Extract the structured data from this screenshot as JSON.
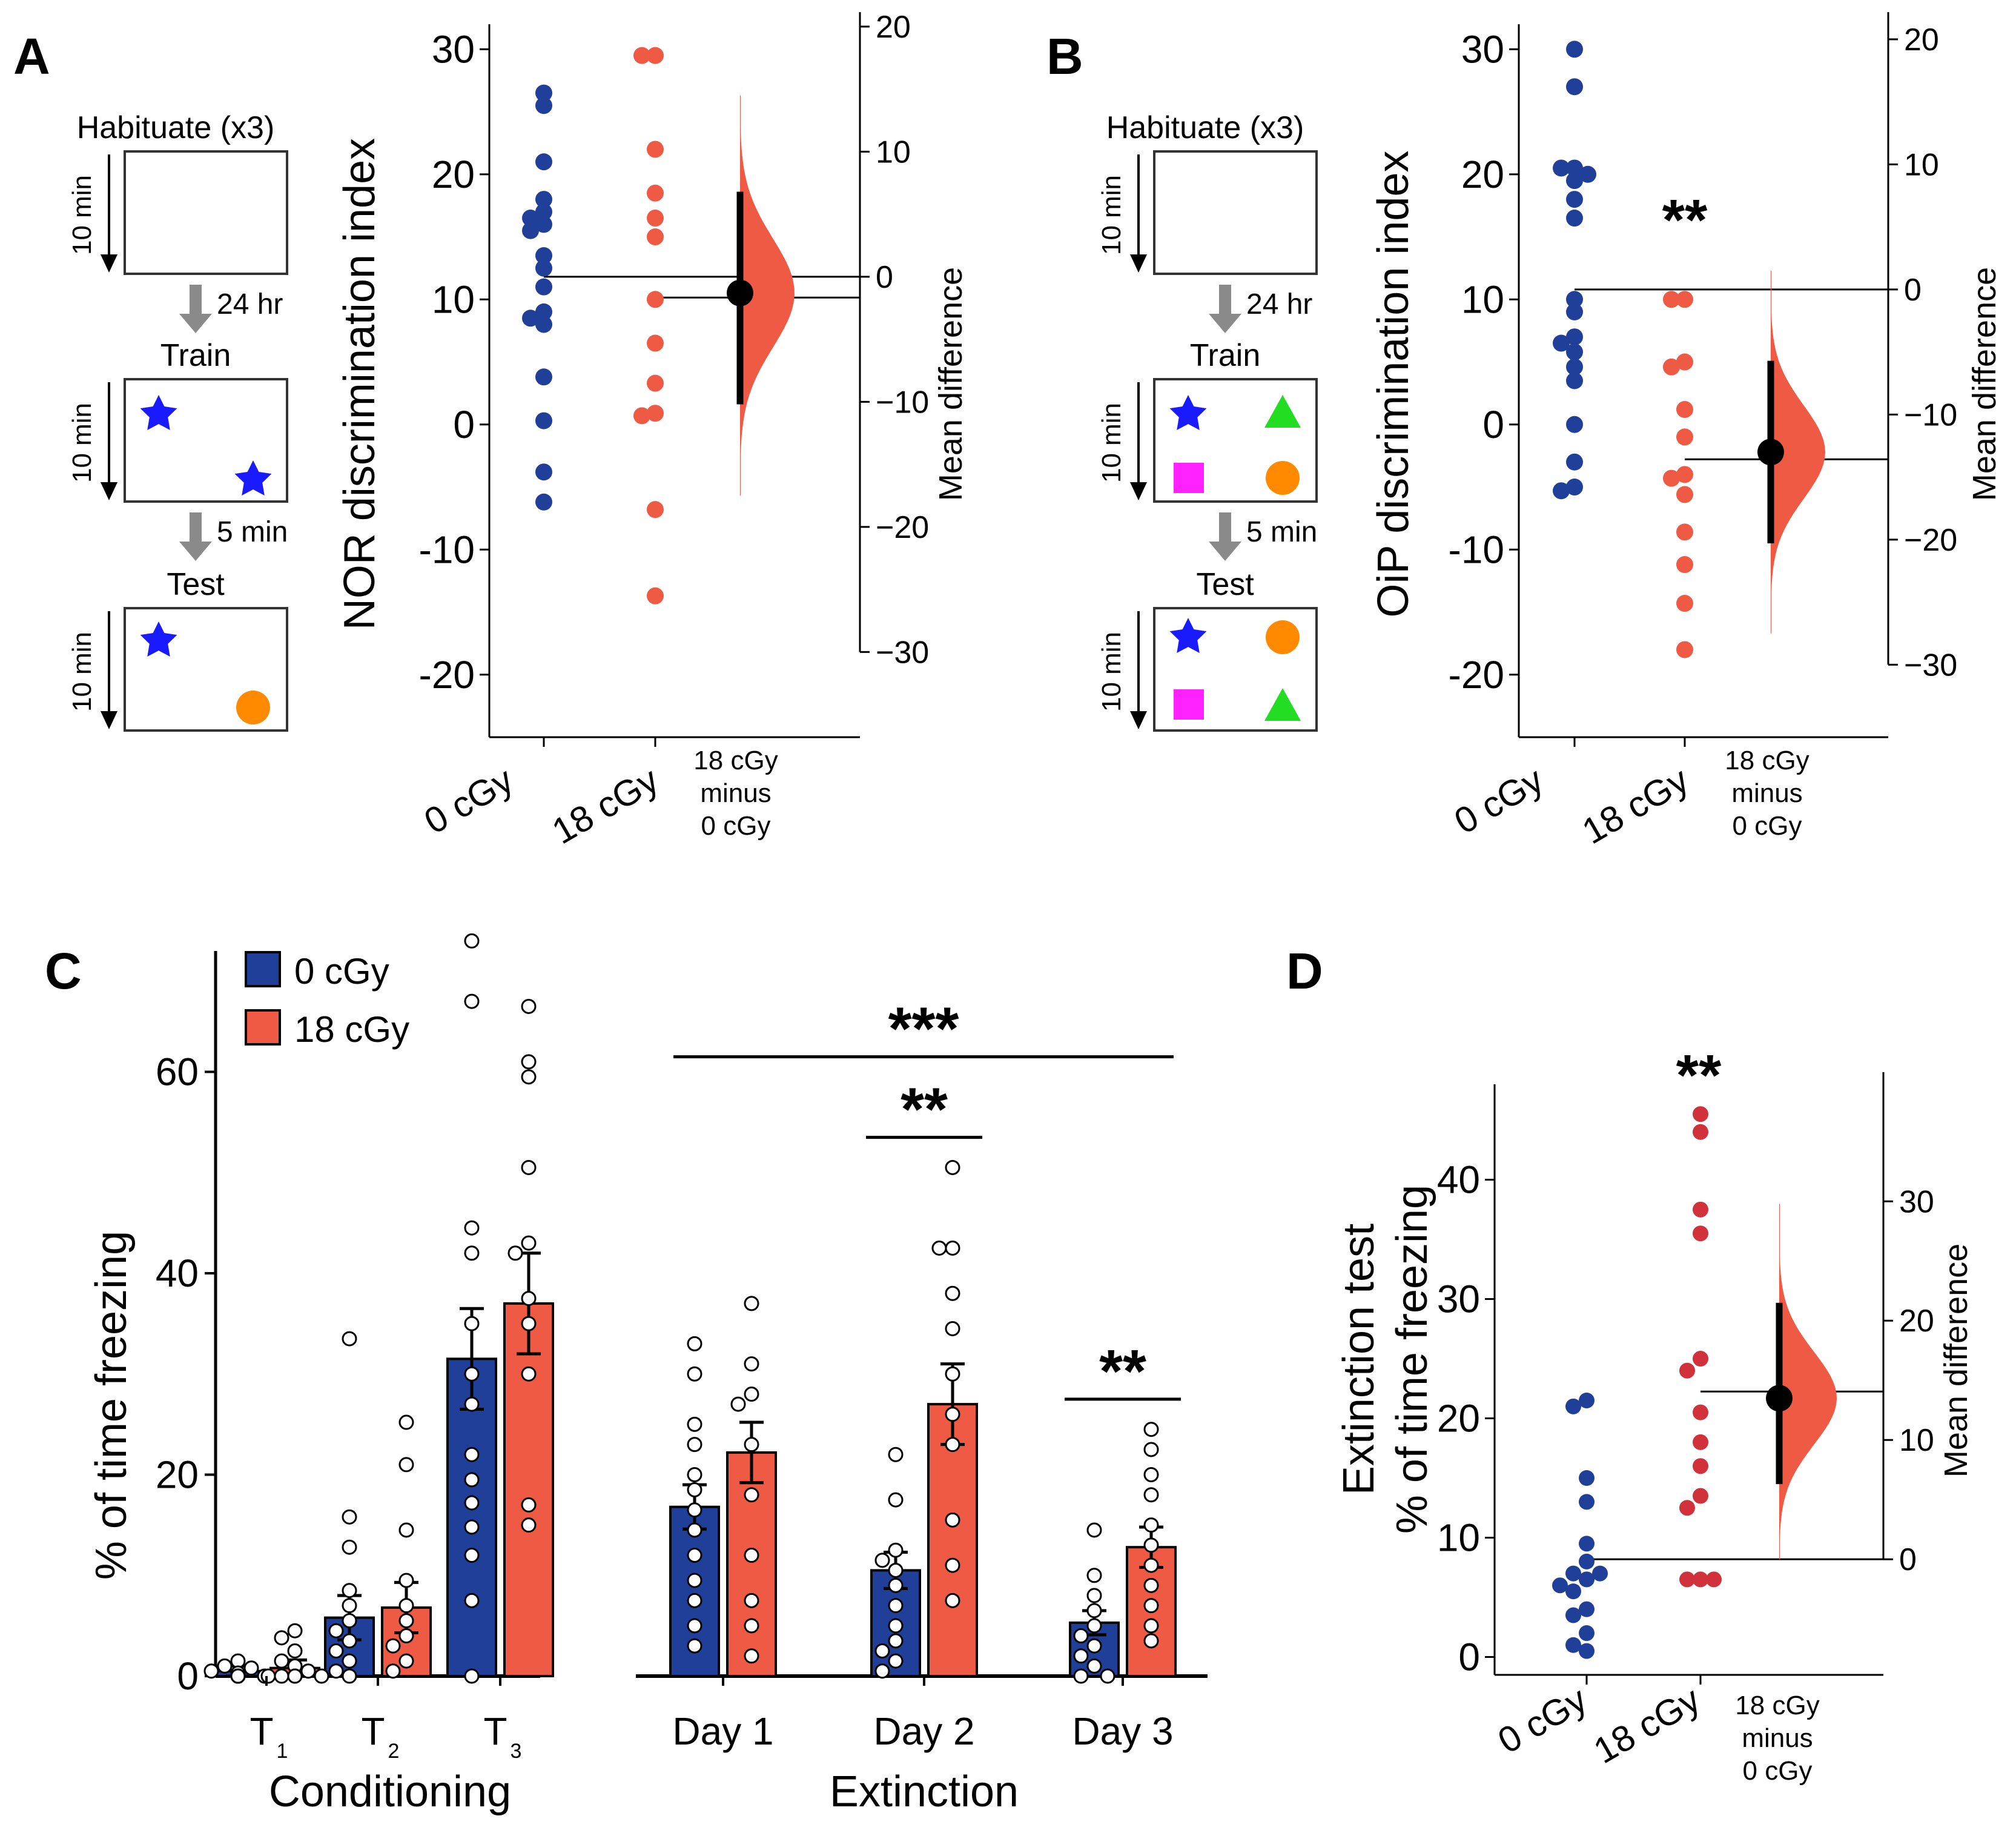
{
  "panel_letters": {
    "a": "A",
    "b": "B",
    "c": "C",
    "d": "D"
  },
  "schematic": {
    "habituate": "Habituate (x3)",
    "duration": "10 min",
    "gap1": "24 hr",
    "train": "Train",
    "gap2": "5 min",
    "test": "Test"
  },
  "colors": {
    "control": "#1f3f99",
    "irradiated": "#ef5a45",
    "irradiated_dark": "#d0313a",
    "bar_control": "#1f3f99",
    "bar_irradiated": "#ef5a45",
    "star": "#1a1aff",
    "circle": "#ff8a00",
    "square": "#ff22ff",
    "triangle": "#22dd22",
    "arrow_gray": "#8a8a8a"
  },
  "icons": [
    "star-icon",
    "circle-icon",
    "square-icon",
    "triangle-icon",
    "down-arrow-icon"
  ],
  "chart_data": [
    {
      "panel": "A",
      "type": "scatter",
      "ylabel": "NOR discrimination index",
      "y2label": "Mean difference",
      "categories": [
        "0 cGy",
        "18 cGy"
      ],
      "delta_label": [
        "18 cGy",
        "minus",
        "0 cGy"
      ],
      "ylim": [
        -25,
        32
      ],
      "yticks": [
        -20,
        -10,
        0,
        10,
        20,
        30
      ],
      "y2ticks": [
        -30,
        -20,
        -10,
        0,
        10,
        20
      ],
      "series": [
        {
          "values": [
            26.5,
            25.5,
            21,
            18,
            17,
            16.5,
            16,
            15.5,
            13.5,
            12.5,
            11,
            9,
            8.5,
            8,
            3.8,
            0.3,
            -3.8,
            -6.2
          ]
        },
        {
          "values": [
            29.5,
            29.5,
            22,
            18.5,
            16.5,
            15,
            10,
            6.5,
            3.3,
            0.9,
            0.7,
            -6.8,
            -13.7
          ]
        }
      ],
      "delta": {
        "mean": -1.3,
        "ci": [
          -10.2,
          6.8
        ],
        "dist_range": [
          -17.5,
          14.5
        ]
      },
      "stars": ""
    },
    {
      "panel": "B",
      "type": "scatter",
      "ylabel": "OiP discrimination index",
      "y2label": "Mean difference",
      "categories": [
        "0 cGy",
        "18 cGy"
      ],
      "delta_label": [
        "18 cGy",
        "minus",
        "0 cGy"
      ],
      "ylim": [
        -25,
        32
      ],
      "yticks": [
        -20,
        -10,
        0,
        10,
        20,
        30
      ],
      "y2ticks": [
        -30,
        -20,
        -10,
        0,
        10,
        20
      ],
      "series": [
        {
          "values": [
            30,
            27,
            20.5,
            20.5,
            20,
            19.5,
            18,
            16.5,
            10,
            9,
            7,
            6.5,
            5.8,
            4.6,
            3.5,
            0,
            -3,
            -5,
            -5.3
          ]
        },
        {
          "values": [
            10,
            10,
            5,
            4.6,
            1.2,
            -1,
            -4,
            -4.3,
            -5.6,
            -8.6,
            -11.2,
            -14.3,
            -18
          ]
        }
      ],
      "delta": {
        "mean": -13,
        "ci": [
          -20.3,
          -5.7
        ],
        "dist_range": [
          -27.5,
          1.5
        ]
      },
      "stars": "**"
    },
    {
      "panel": "C",
      "type": "bar",
      "ylabel": "% of time freezing",
      "legend": [
        "0 cGy",
        "18 cGy"
      ],
      "categories": [
        "T",
        "T",
        "T",
        "Day 1",
        "Day 2",
        "Day 3"
      ],
      "category_subscripts": [
        "1",
        "2",
        "3",
        "",
        "",
        ""
      ],
      "groups": [
        "Conditioning",
        "Extinction"
      ],
      "ylim": [
        0,
        72
      ],
      "yticks": [
        0,
        20,
        40,
        60
      ],
      "series": [
        {
          "name": "0 cGy",
          "means": [
            0.5,
            5.8,
            31.5,
            16.8,
            10.5,
            5.3
          ],
          "sem": [
            0.5,
            2.2,
            5,
            2.2,
            1.8,
            1.2
          ],
          "points": [
            [
              1.5,
              1,
              0.8,
              0.5,
              0.3,
              0,
              0,
              0,
              0,
              0,
              0,
              0,
              0,
              0,
              0
            ],
            [
              33.5,
              15.8,
              12.8,
              8.5,
              7,
              5.5,
              4.5,
              3.5,
              2.5,
              1.5,
              0.5,
              0
            ],
            [
              73,
              67,
              44.5,
              42,
              35,
              30,
              27,
              22,
              19.5,
              17.2,
              14.8,
              12,
              7.5,
              0
            ],
            [
              33,
              30,
              25,
              23,
              20,
              18.5,
              16.5,
              14.5,
              12,
              9.5,
              7.5,
              5,
              3
            ],
            [
              22,
              17.5,
              12.5,
              11.5,
              10.5,
              9,
              7,
              5,
              3.5,
              2.5,
              1.5,
              0.5
            ],
            [
              14.5,
              10,
              8,
              6.5,
              5,
              4,
              3,
              2,
              1,
              0,
              0
            ]
          ]
        },
        {
          "name": "18 cGy",
          "means": [
            0.8,
            6.8,
            37,
            22.2,
            27,
            12.8
          ],
          "sem": [
            0.8,
            2.5,
            5,
            3,
            4,
            2
          ],
          "points": [
            [
              4.5,
              3.8,
              2.5,
              1.5,
              1,
              0.5,
              0,
              0,
              0,
              0,
              0
            ],
            [
              25.2,
              21,
              14.5,
              9.5,
              7,
              5.5,
              4,
              3,
              1.5,
              0.5
            ],
            [
              66.5,
              61,
              59.5,
              50.5,
              43,
              42,
              37.5,
              35,
              30,
              17,
              15
            ],
            [
              37,
              31,
              28,
              27,
              23,
              18,
              12,
              7.5,
              5,
              2
            ],
            [
              50.5,
              42.5,
              42.5,
              38,
              34.5,
              30,
              26,
              23,
              15.5,
              11,
              7.5
            ],
            [
              24.5,
              22.5,
              20,
              18,
              15,
              13,
              11,
              9,
              7,
              5,
              3.5
            ]
          ]
        }
      ],
      "significance": [
        {
          "label": "***",
          "from": 3,
          "to": 5,
          "span": "groups",
          "level": 61.5
        },
        {
          "label": "**",
          "from": 4,
          "to": 4,
          "span": "pair",
          "level": 53.5
        },
        {
          "label": "**",
          "from": 5,
          "to": 5,
          "span": "pair",
          "level": 27.5
        }
      ]
    },
    {
      "panel": "D",
      "type": "scatter",
      "ylabel": [
        "Extinction test",
        "% of time freezing"
      ],
      "y2label": "Mean difference",
      "categories": [
        "0 cGy",
        "18 cGy"
      ],
      "delta_label": [
        "18 cGy",
        "minus",
        "0 cGy"
      ],
      "ylim": [
        -1.5,
        48
      ],
      "yticks": [
        0,
        10,
        20,
        30,
        40
      ],
      "y2ticks": [
        0,
        10,
        20,
        30
      ],
      "series": [
        {
          "values": [
            21.5,
            21,
            15,
            13,
            9.5,
            8,
            7,
            7,
            6.5,
            6,
            5.5,
            4,
            3.5,
            2,
            1,
            0.5
          ]
        },
        {
          "values": [
            45.5,
            44,
            37.5,
            35.5,
            25,
            24,
            20.5,
            18,
            16,
            13.5,
            12.5,
            6.5,
            6.5,
            6.5
          ]
        }
      ],
      "delta": {
        "mean": 13.5,
        "ci": [
          6.3,
          21.5
        ],
        "dist_range": [
          0,
          29.8
        ]
      },
      "stars": "**"
    }
  ]
}
